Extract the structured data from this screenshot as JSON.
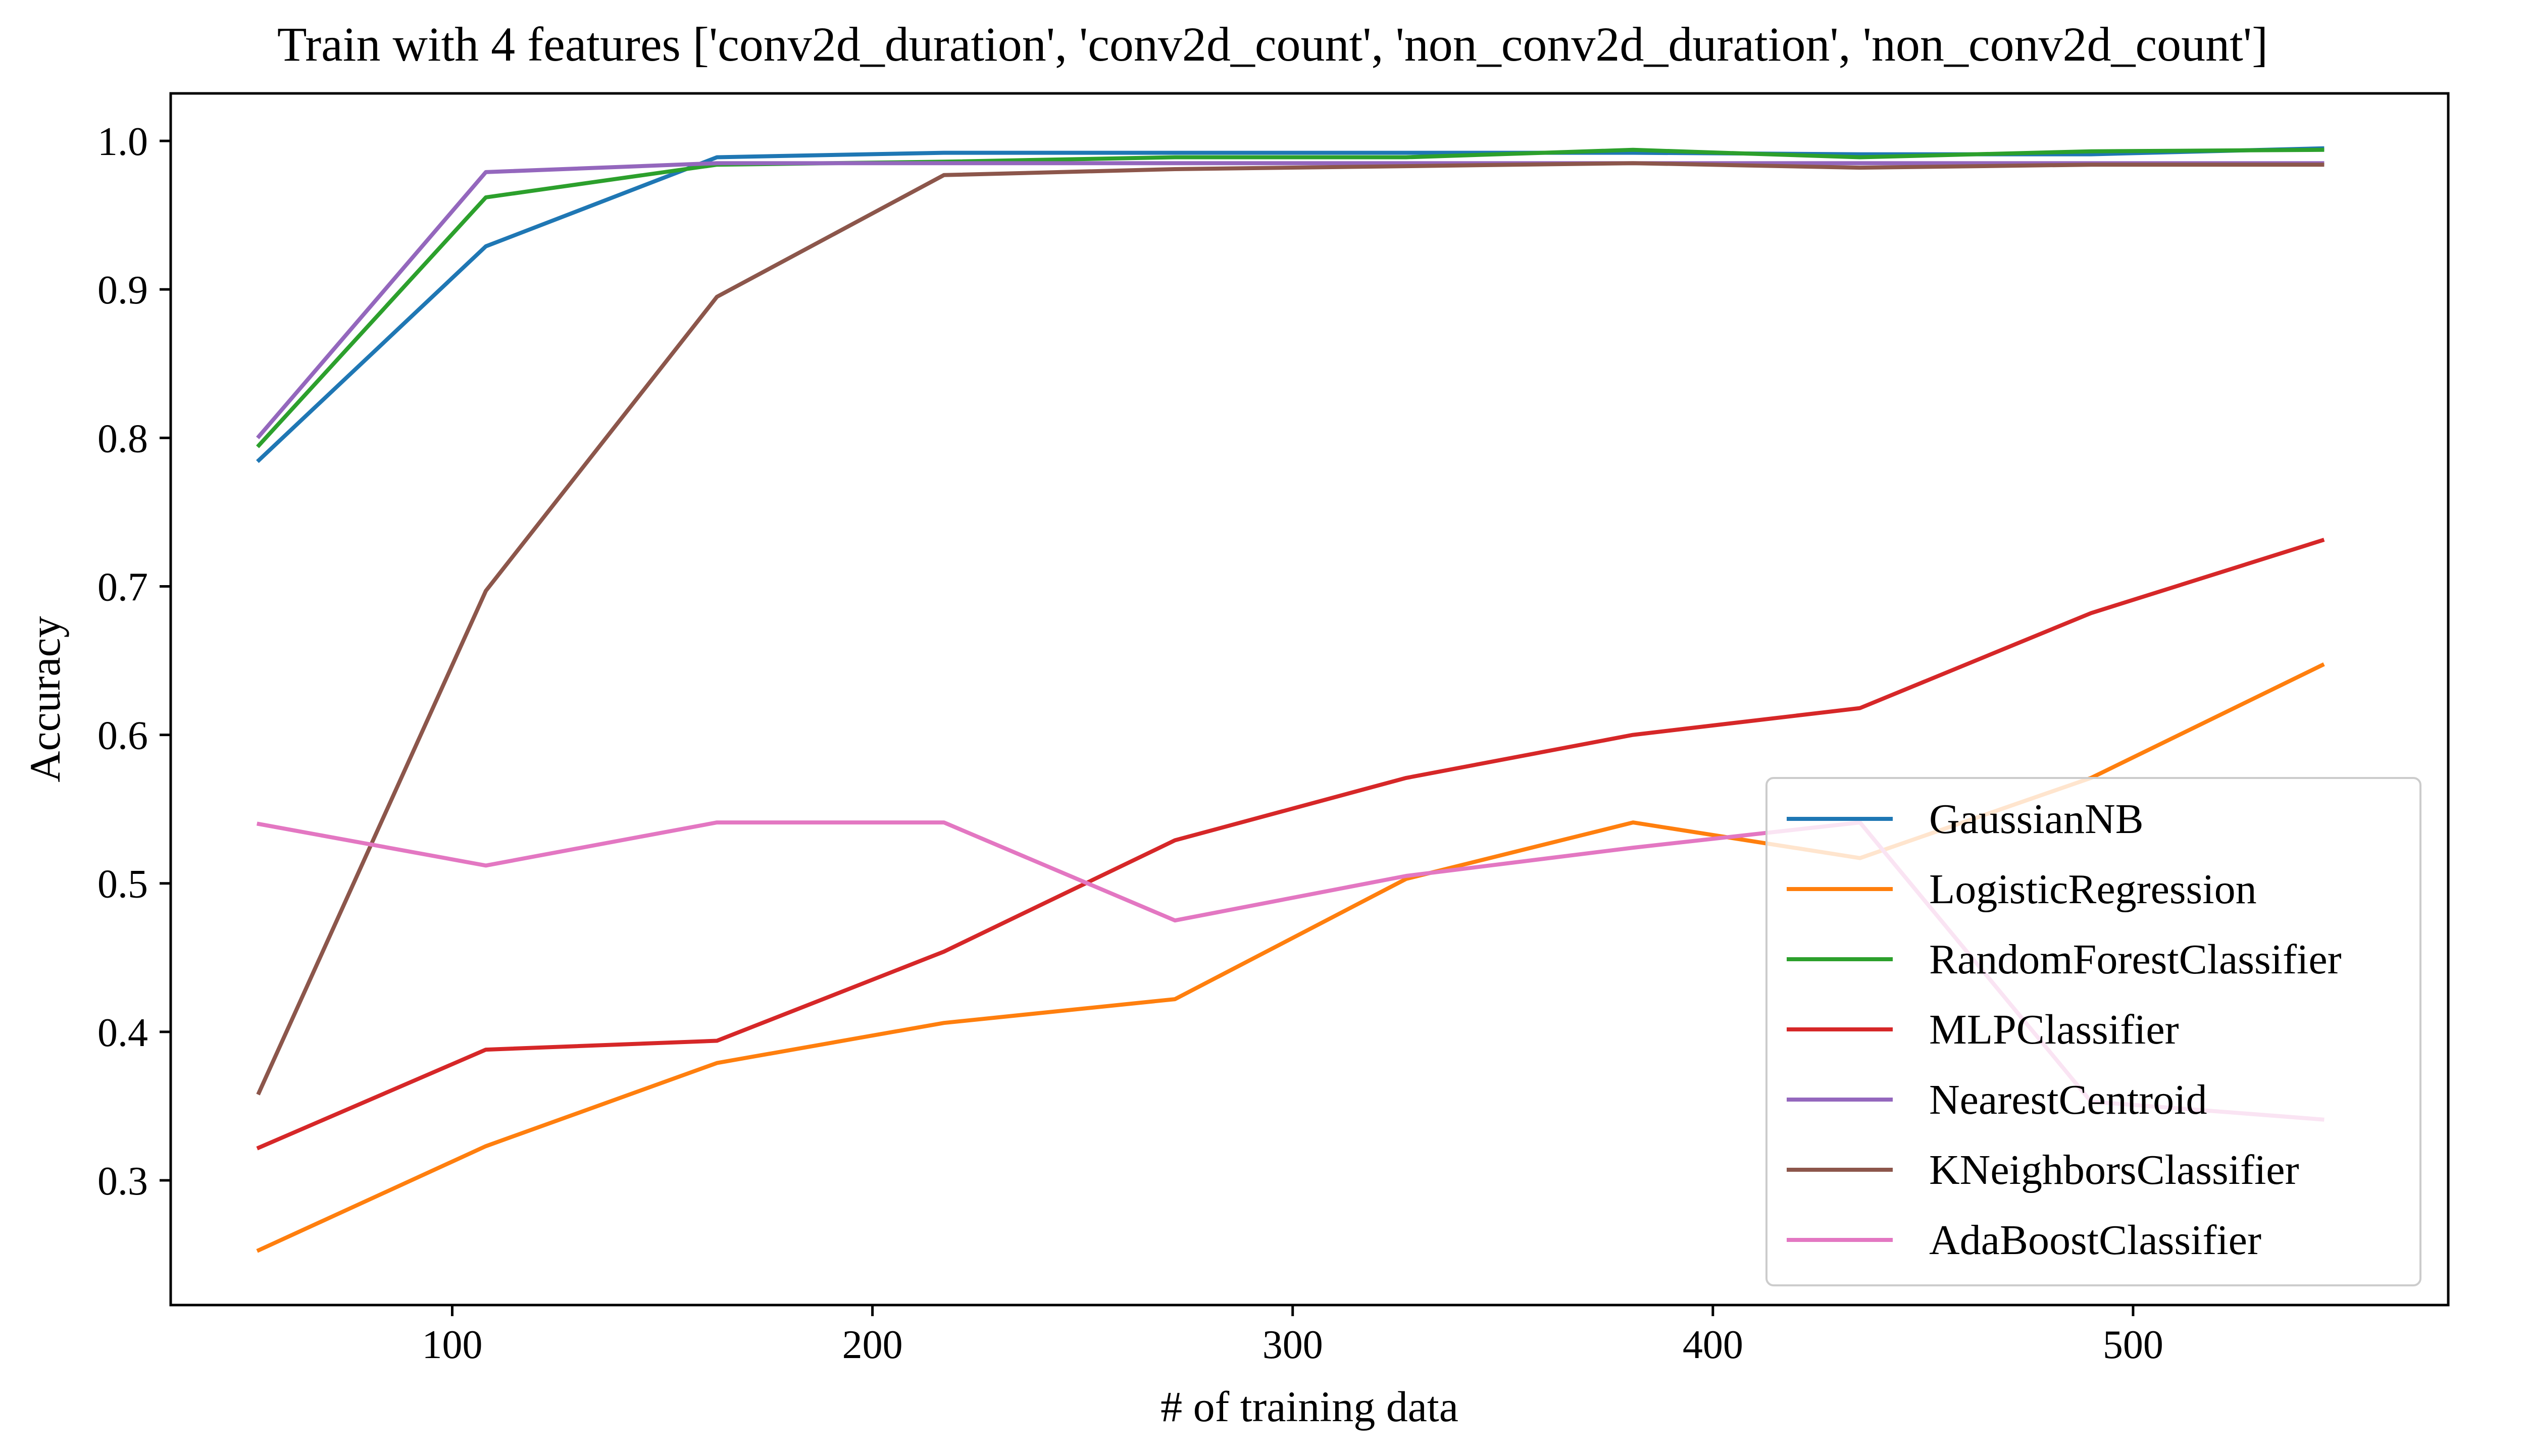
{
  "chart_data": {
    "type": "line",
    "title": "Train with 4 features ['conv2d_duration', 'conv2d_count', 'non_conv2d_duration', 'non_conv2d_count']",
    "xlabel": "# of training data",
    "ylabel": "Accuracy",
    "xlim": [
      33,
      575
    ],
    "ylim": [
      0.216,
      1.032
    ],
    "xticks": [
      100,
      200,
      300,
      400,
      500
    ],
    "yticks": [
      0.3,
      0.4,
      0.5,
      0.6,
      0.7,
      0.8,
      0.9,
      1.0
    ],
    "xtick_labels": [
      "100",
      "200",
      "300",
      "400",
      "500"
    ],
    "ytick_labels": [
      "0.3",
      "0.4",
      "0.5",
      "0.6",
      "0.7",
      "0.8",
      "0.9",
      "1.0"
    ],
    "grid": false,
    "legend_position": "lower-right",
    "x": [
      54,
      108,
      163,
      217,
      272,
      327,
      381,
      435,
      490,
      545
    ],
    "series": [
      {
        "name": "GaussianNB",
        "color": "#1f77b4",
        "values": [
          0.785,
          0.929,
          0.989,
          0.992,
          0.992,
          0.992,
          0.992,
          0.991,
          0.991,
          0.995
        ]
      },
      {
        "name": "LogisticRegression",
        "color": "#ff7f0e",
        "values": [
          0.253,
          0.323,
          0.379,
          0.406,
          0.422,
          0.503,
          0.541,
          0.517,
          0.571,
          0.647
        ]
      },
      {
        "name": "RandomForestClassifier",
        "color": "#2ca02c",
        "values": [
          0.795,
          0.962,
          0.984,
          0.986,
          0.989,
          0.989,
          0.994,
          0.989,
          0.993,
          0.994
        ]
      },
      {
        "name": "MLPClassifier",
        "color": "#d62728",
        "values": [
          0.322,
          0.388,
          0.394,
          0.454,
          0.529,
          0.571,
          0.6,
          0.618,
          0.682,
          0.731
        ]
      },
      {
        "name": "NearestCentroid",
        "color": "#9467bd",
        "values": [
          0.801,
          0.979,
          0.985,
          0.985,
          0.985,
          0.985,
          0.985,
          0.985,
          0.985,
          0.985
        ]
      },
      {
        "name": "KNeighborsClassifier",
        "color": "#8c564b",
        "values": [
          0.359,
          0.697,
          0.895,
          0.977,
          0.981,
          0.983,
          0.985,
          0.982,
          0.984,
          0.984
        ]
      },
      {
        "name": "AdaBoostClassifier",
        "color": "#e377c2",
        "values": [
          0.54,
          0.512,
          0.541,
          0.541,
          0.475,
          0.505,
          0.524,
          0.541,
          0.353,
          0.341
        ]
      }
    ]
  }
}
